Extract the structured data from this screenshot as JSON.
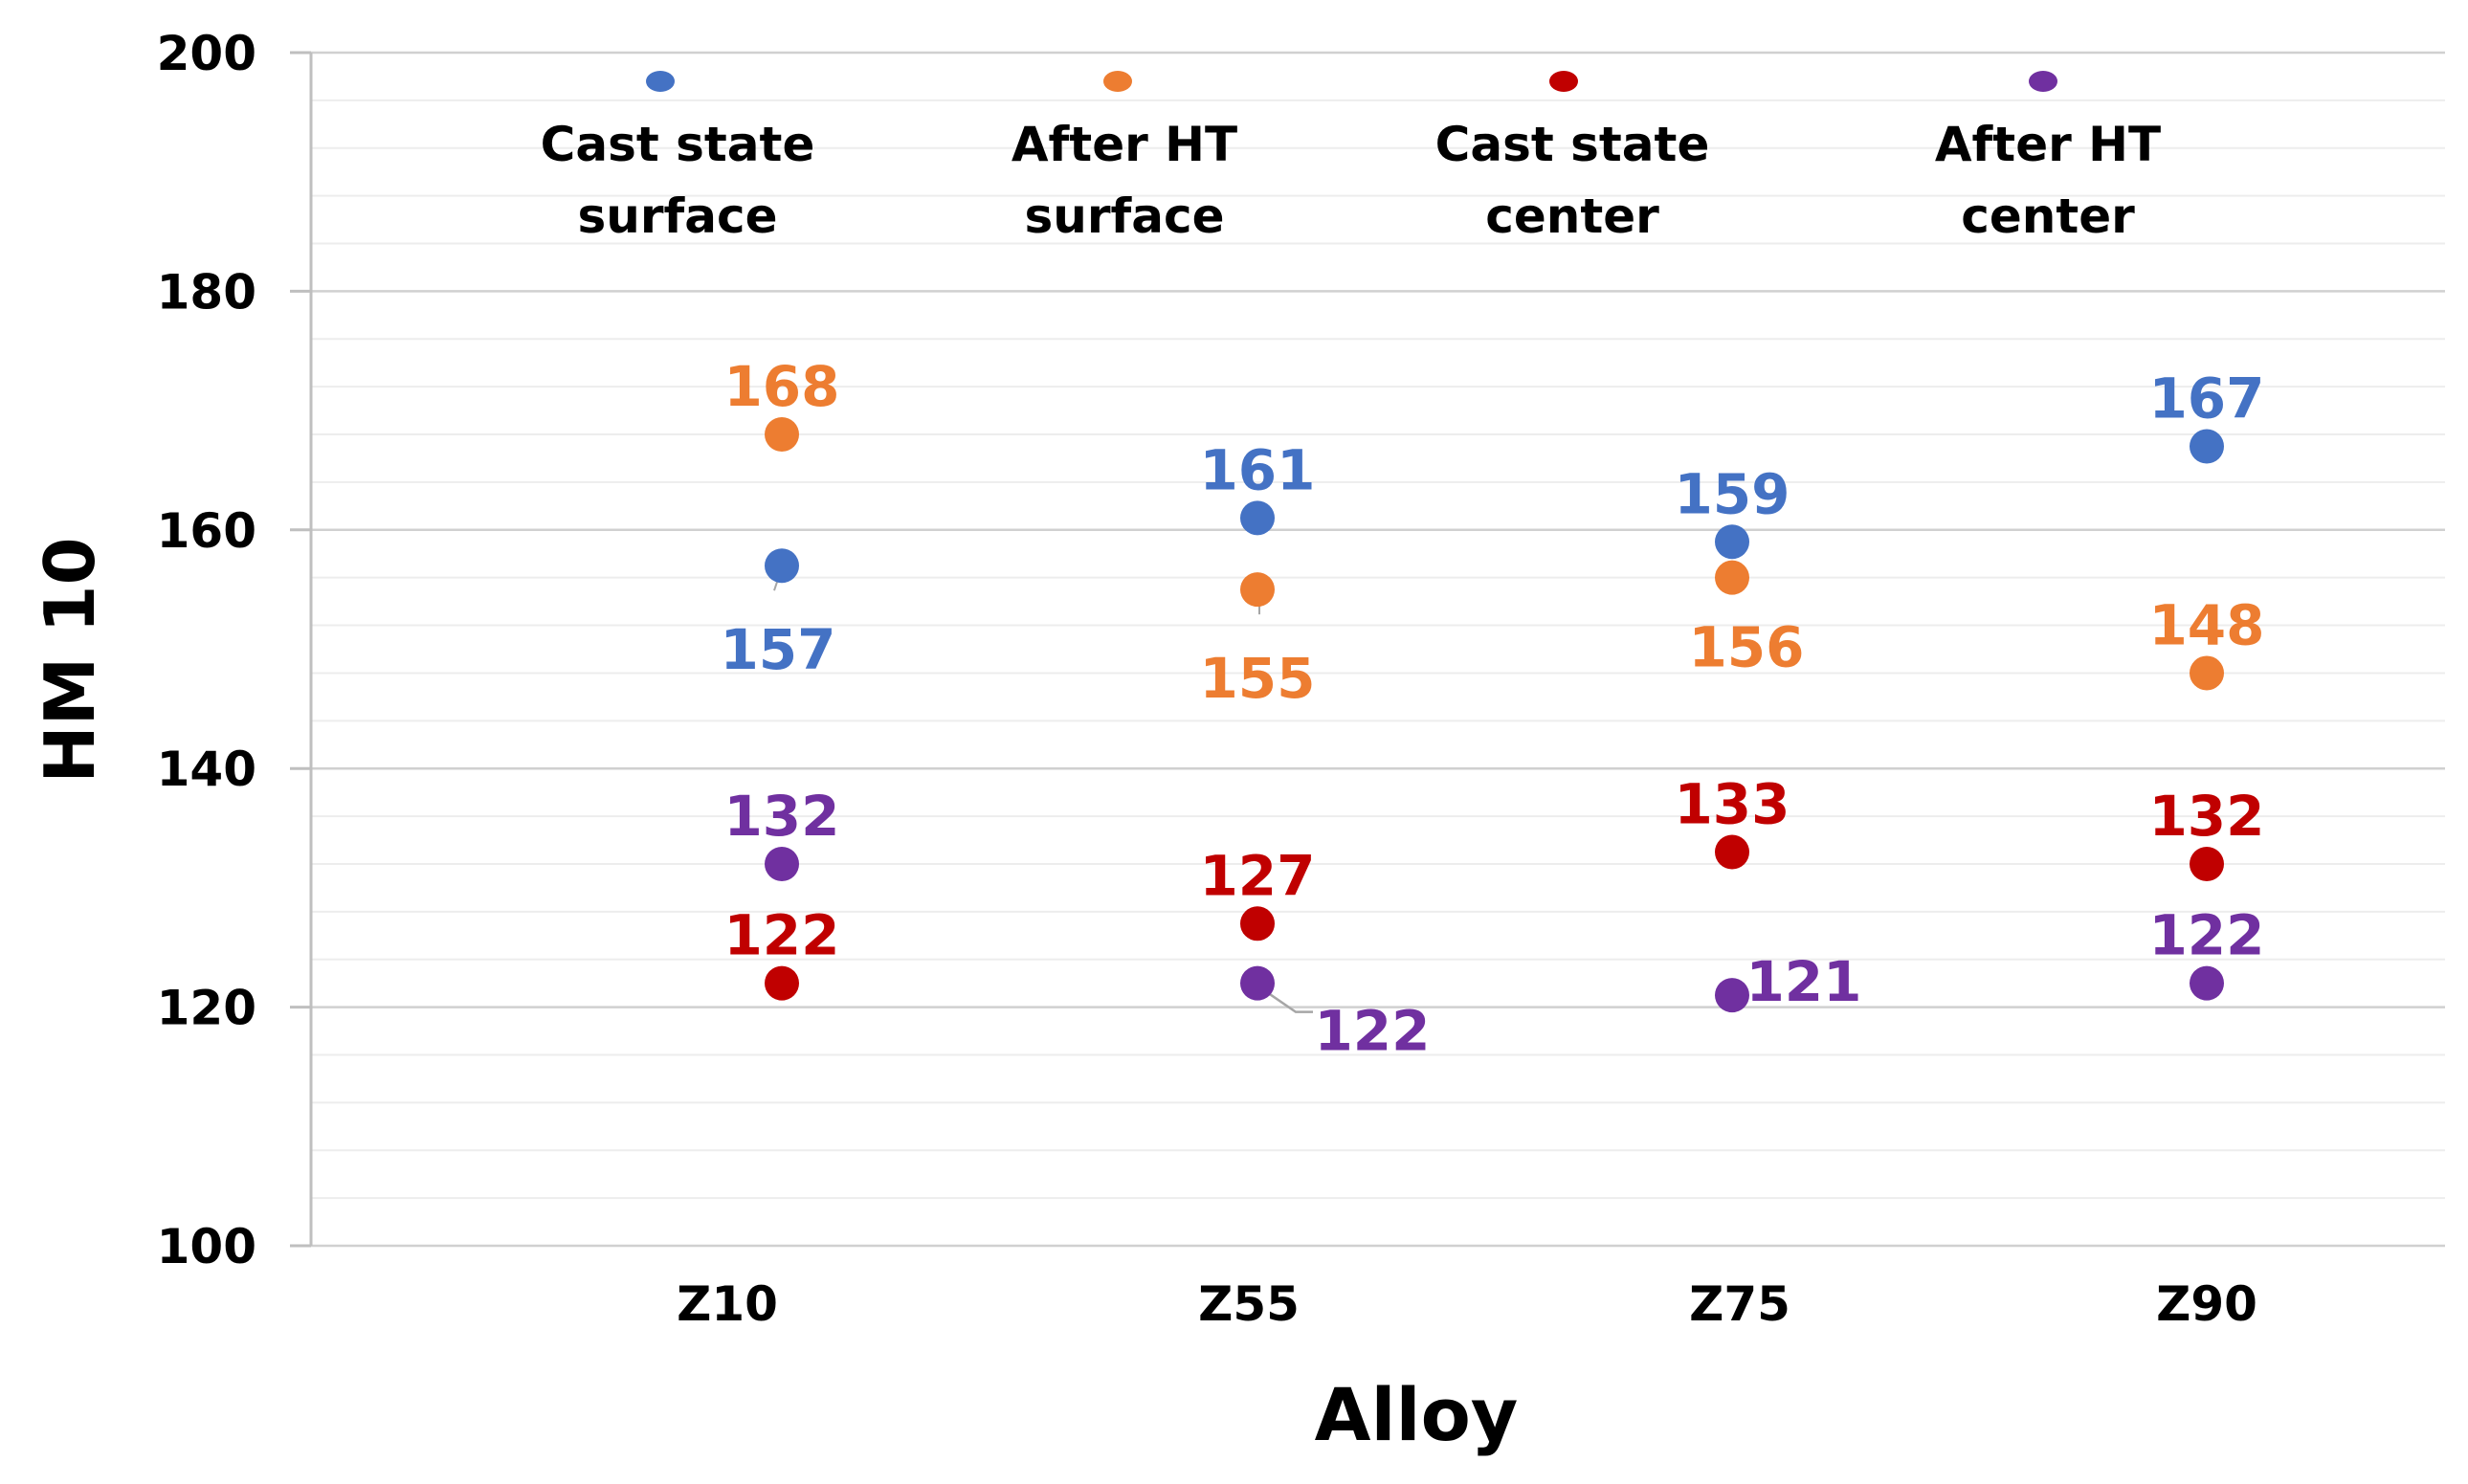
{
  "chart_data": {
    "type": "scatter",
    "title": "",
    "xlabel": "Alloy",
    "ylabel": "HM 10",
    "categories": [
      "Z10",
      "Z55",
      "Z75",
      "Z90"
    ],
    "ylim": [
      100,
      200
    ],
    "y_ticks": [
      100,
      120,
      140,
      160,
      180,
      200
    ],
    "grid": "horizontal major and minor",
    "legend_position": "top",
    "series": [
      {
        "name": "Cast state surface",
        "legend_lines": [
          "Cast state",
          "surface"
        ],
        "color": "#4472C4",
        "values": [
          157,
          161,
          159,
          167
        ],
        "labels": [
          "157",
          "161",
          "159",
          "167"
        ]
      },
      {
        "name": "After HT surface",
        "legend_lines": [
          "After HT",
          "surface"
        ],
        "color": "#ED7D31",
        "values": [
          168,
          155,
          156,
          148
        ],
        "labels": [
          "168",
          "155",
          "156",
          "148"
        ]
      },
      {
        "name": "Cast state center",
        "legend_lines": [
          "Cast state",
          "center"
        ],
        "color": "#C00000",
        "values": [
          122,
          127,
          133,
          132
        ],
        "labels": [
          "122",
          "127",
          "133",
          "132"
        ]
      },
      {
        "name": "After HT center",
        "legend_lines": [
          "After HT",
          "center"
        ],
        "color": "#7030A0",
        "values": [
          132,
          122,
          121,
          122
        ],
        "labels": [
          "132",
          "122",
          "121",
          "122"
        ]
      }
    ]
  }
}
